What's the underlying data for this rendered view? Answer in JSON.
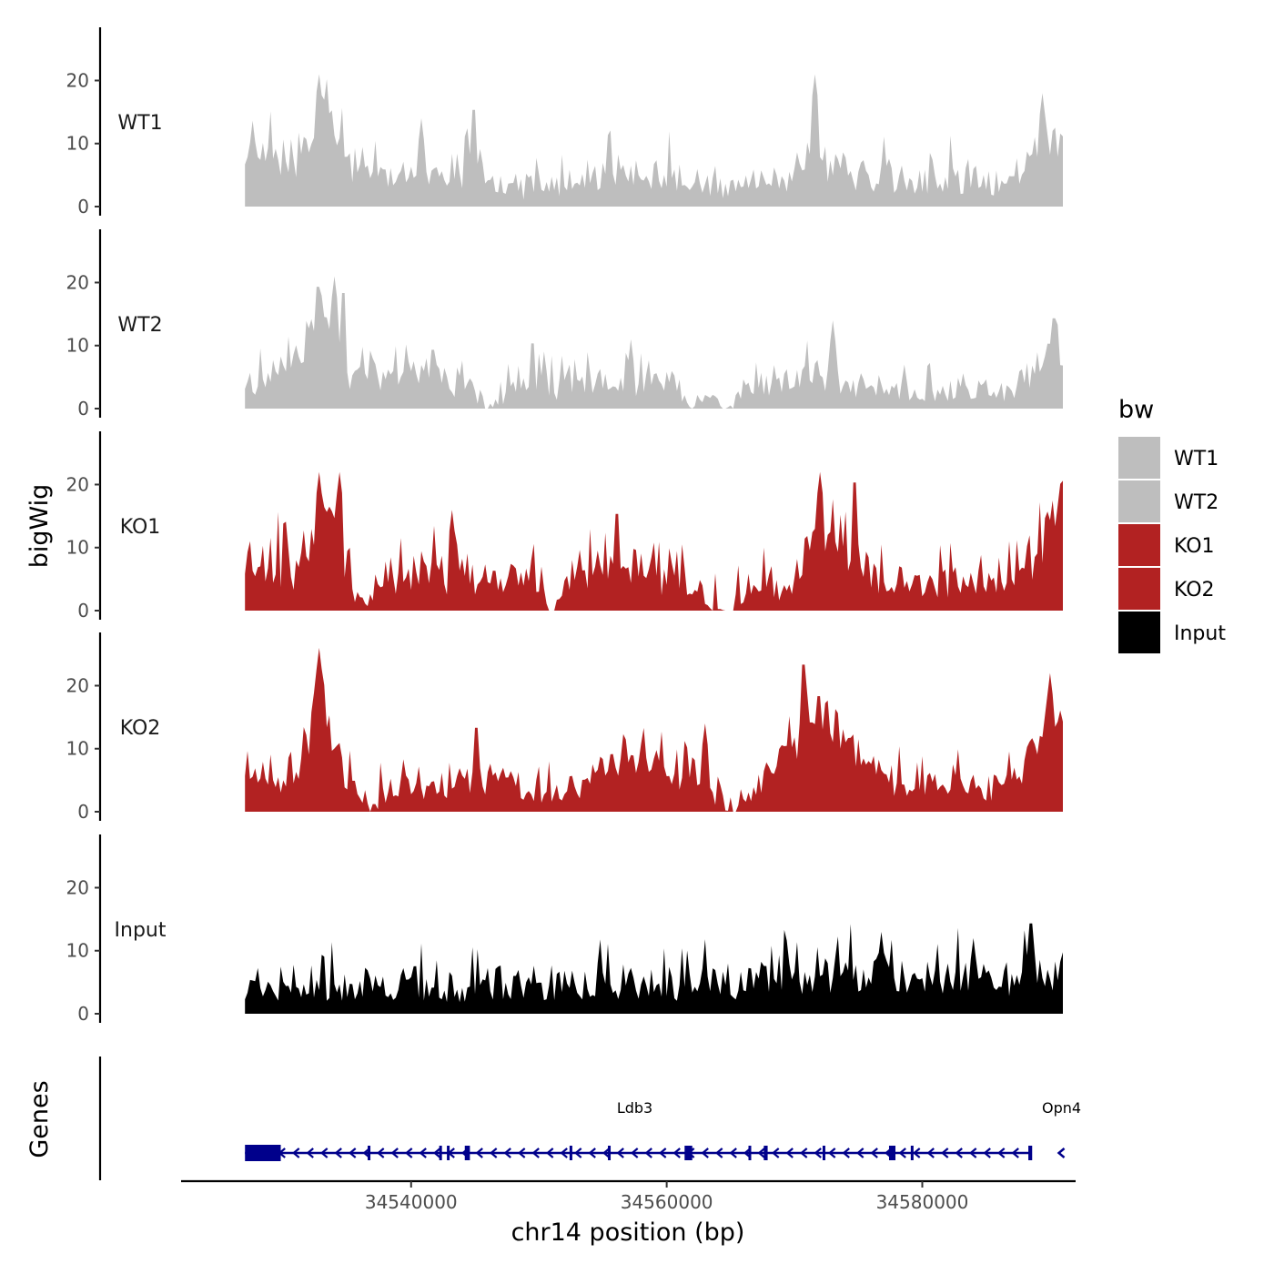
{
  "chart_data": {
    "type": "area",
    "title": "",
    "ylabel": "bigWig",
    "xlabel": "chr14 position (bp)",
    "genes_track_label": "Genes",
    "xlim": [
      34522000,
      34592000
    ],
    "ylim": [
      0,
      27
    ],
    "x_ticks": [
      {
        "value": 34540000,
        "label": "34540000"
      },
      {
        "value": 34560000,
        "label": "34560000"
      },
      {
        "value": 34580000,
        "label": "34580000"
      }
    ],
    "y_ticks": [
      {
        "value": 0,
        "label": "0"
      },
      {
        "value": 10,
        "label": "10"
      },
      {
        "value": 20,
        "label": "20"
      }
    ],
    "x_start": 34527000,
    "x_end": 34591000,
    "step_bp": 200,
    "series": [
      {
        "name": "WT1",
        "color": "#bebebe",
        "anchors": [
          [
            34527000,
            8
          ],
          [
            34529000,
            10
          ],
          [
            34531000,
            9
          ],
          [
            34532500,
            13
          ],
          [
            34533500,
            17
          ],
          [
            34534500,
            11
          ],
          [
            34536500,
            6
          ],
          [
            34538500,
            5
          ],
          [
            34540500,
            5
          ],
          [
            34542500,
            5
          ],
          [
            34544500,
            8
          ],
          [
            34546500,
            4
          ],
          [
            34548500,
            3
          ],
          [
            34550500,
            3
          ],
          [
            34552500,
            5
          ],
          [
            34554500,
            5
          ],
          [
            34556500,
            6
          ],
          [
            34558500,
            5
          ],
          [
            34560500,
            5
          ],
          [
            34562500,
            4
          ],
          [
            34564000,
            2
          ],
          [
            34565500,
            3
          ],
          [
            34567500,
            4
          ],
          [
            34569500,
            6
          ],
          [
            34571500,
            9
          ],
          [
            34573500,
            8
          ],
          [
            34575500,
            5
          ],
          [
            34577500,
            4
          ],
          [
            34579500,
            5
          ],
          [
            34581500,
            5
          ],
          [
            34583500,
            4
          ],
          [
            34585500,
            4
          ],
          [
            34587500,
            6
          ],
          [
            34589500,
            12
          ],
          [
            34591000,
            9
          ]
        ],
        "seed": 11,
        "noise": 5,
        "peaks": [
          [
            34532800,
            21
          ],
          [
            34540800,
            14
          ],
          [
            34544900,
            17
          ],
          [
            34555500,
            13
          ],
          [
            34571600,
            21
          ],
          [
            34589400,
            18
          ]
        ]
      },
      {
        "name": "WT2",
        "color": "#bebebe",
        "anchors": [
          [
            34527000,
            4
          ],
          [
            34529000,
            6
          ],
          [
            34531000,
            7
          ],
          [
            34532500,
            13
          ],
          [
            34533500,
            15
          ],
          [
            34534500,
            8
          ],
          [
            34536500,
            4
          ],
          [
            34538500,
            5
          ],
          [
            34540500,
            6
          ],
          [
            34542500,
            5
          ],
          [
            34544500,
            4
          ],
          [
            34545800,
            0
          ],
          [
            34547500,
            3
          ],
          [
            34549500,
            4
          ],
          [
            34551500,
            3
          ],
          [
            34553500,
            4
          ],
          [
            34555500,
            5
          ],
          [
            34557500,
            4
          ],
          [
            34559500,
            4
          ],
          [
            34561500,
            1.5
          ],
          [
            34563500,
            2
          ],
          [
            34564600,
            0
          ],
          [
            34566500,
            4
          ],
          [
            34568500,
            4
          ],
          [
            34570500,
            5
          ],
          [
            34572500,
            6
          ],
          [
            34574500,
            4
          ],
          [
            34576500,
            4
          ],
          [
            34578500,
            3
          ],
          [
            34580500,
            3
          ],
          [
            34582500,
            3
          ],
          [
            34584500,
            3
          ],
          [
            34586500,
            3
          ],
          [
            34588500,
            5
          ],
          [
            34590500,
            11
          ],
          [
            34591000,
            8
          ]
        ],
        "seed": 23,
        "noise": 4,
        "peaks": [
          [
            34532700,
            21
          ],
          [
            34534000,
            21
          ],
          [
            34534700,
            20
          ],
          [
            34541700,
            11
          ],
          [
            34549500,
            12
          ],
          [
            34557200,
            11
          ],
          [
            34573000,
            14
          ],
          [
            34590300,
            16
          ]
        ]
      },
      {
        "name": "KO1",
        "color": "#b22222",
        "anchors": [
          [
            34527000,
            9
          ],
          [
            34529000,
            9
          ],
          [
            34531000,
            8
          ],
          [
            34532500,
            15
          ],
          [
            34533500,
            15
          ],
          [
            34534500,
            10
          ],
          [
            34535500,
            3
          ],
          [
            34536500,
            1
          ],
          [
            34537500,
            6
          ],
          [
            34539500,
            6
          ],
          [
            34541500,
            7
          ],
          [
            34543500,
            6
          ],
          [
            34545500,
            6
          ],
          [
            34547500,
            5
          ],
          [
            34549500,
            5
          ],
          [
            34550800,
            1
          ],
          [
            34552500,
            6
          ],
          [
            34554500,
            7
          ],
          [
            34556500,
            9
          ],
          [
            34558500,
            6
          ],
          [
            34560500,
            6
          ],
          [
            34562000,
            5
          ],
          [
            34563300,
            1
          ],
          [
            34564500,
            0
          ],
          [
            34565200,
            0
          ],
          [
            34566500,
            4
          ],
          [
            34568000,
            5
          ],
          [
            34569500,
            3
          ],
          [
            34571000,
            10
          ],
          [
            34572500,
            12
          ],
          [
            34574500,
            10
          ],
          [
            34576500,
            5
          ],
          [
            34578500,
            4
          ],
          [
            34580500,
            5
          ],
          [
            34582500,
            5
          ],
          [
            34584500,
            4
          ],
          [
            34586500,
            4
          ],
          [
            34588500,
            6
          ],
          [
            34590000,
            15
          ],
          [
            34591000,
            16
          ]
        ],
        "seed": 37,
        "noise": 5,
        "peaks": [
          [
            34532800,
            22
          ],
          [
            34534400,
            22
          ],
          [
            34543200,
            16
          ],
          [
            34556100,
            17
          ],
          [
            34572000,
            22
          ],
          [
            34574700,
            22
          ],
          [
            34590800,
            20
          ]
        ]
      },
      {
        "name": "KO2",
        "color": "#b22222",
        "anchors": [
          [
            34527000,
            6
          ],
          [
            34529000,
            7
          ],
          [
            34531000,
            5
          ],
          [
            34532000,
            12
          ],
          [
            34532700,
            20
          ],
          [
            34533500,
            14
          ],
          [
            34535000,
            6
          ],
          [
            34536800,
            1
          ],
          [
            34538500,
            4
          ],
          [
            34540500,
            4
          ],
          [
            34542500,
            5
          ],
          [
            34544000,
            5
          ],
          [
            34546500,
            6
          ],
          [
            34548500,
            4
          ],
          [
            34550500,
            3
          ],
          [
            34552500,
            4
          ],
          [
            34554500,
            7
          ],
          [
            34556500,
            8
          ],
          [
            34558500,
            8
          ],
          [
            34560500,
            7
          ],
          [
            34562500,
            7
          ],
          [
            34563700,
            2
          ],
          [
            34564700,
            0
          ],
          [
            34566000,
            2
          ],
          [
            34567500,
            6
          ],
          [
            34569500,
            10
          ],
          [
            34571500,
            16
          ],
          [
            34573500,
            12
          ],
          [
            34575500,
            9
          ],
          [
            34577500,
            6
          ],
          [
            34579500,
            5
          ],
          [
            34581500,
            5
          ],
          [
            34583500,
            4
          ],
          [
            34585500,
            4
          ],
          [
            34587500,
            6
          ],
          [
            34589500,
            14
          ],
          [
            34591000,
            15
          ]
        ],
        "seed": 53,
        "noise": 4,
        "peaks": [
          [
            34532800,
            26
          ],
          [
            34545100,
            15
          ],
          [
            34563000,
            14
          ],
          [
            34570700,
            25
          ],
          [
            34571900,
            20
          ],
          [
            34590000,
            22
          ]
        ]
      },
      {
        "name": "Input",
        "color": "#000000",
        "anchors": [
          [
            34527000,
            4
          ],
          [
            34531000,
            5
          ],
          [
            34535000,
            5
          ],
          [
            34539000,
            5
          ],
          [
            34543000,
            4
          ],
          [
            34547000,
            5
          ],
          [
            34551000,
            5
          ],
          [
            34555000,
            5
          ],
          [
            34559000,
            5
          ],
          [
            34563000,
            5
          ],
          [
            34567000,
            6
          ],
          [
            34571000,
            6
          ],
          [
            34575000,
            6
          ],
          [
            34579000,
            6
          ],
          [
            34583000,
            6
          ],
          [
            34587000,
            7
          ],
          [
            34591000,
            7
          ]
        ],
        "seed": 71,
        "noise": 6,
        "peaks": [
          [
            34576800,
            13
          ],
          [
            34584000,
            12
          ],
          [
            34588500,
            16
          ]
        ]
      }
    ],
    "legend": {
      "title": "bw",
      "position": "right",
      "entries": [
        {
          "label": "WT1",
          "color": "#bebebe"
        },
        {
          "label": "WT2",
          "color": "#bebebe"
        },
        {
          "label": "KO1",
          "color": "#b22222"
        },
        {
          "label": "KO2",
          "color": "#b22222"
        },
        {
          "label": "Input",
          "color": "#000000"
        }
      ]
    },
    "genes": {
      "color": "#00008b",
      "items": [
        {
          "name": "Ldb3",
          "start": 34527000,
          "end": 34588500,
          "strand": "-",
          "exons": [
            [
              34527000,
              34529800
            ],
            [
              34536600,
              34536800
            ],
            [
              34542200,
              34542400
            ],
            [
              34542800,
              34543000
            ],
            [
              34544200,
              34544600
            ],
            [
              34552400,
              34552600
            ],
            [
              34555400,
              34555600
            ],
            [
              34561400,
              34562000
            ],
            [
              34566400,
              34566600
            ],
            [
              34567600,
              34567900
            ],
            [
              34572200,
              34572400
            ],
            [
              34577400,
              34577900
            ],
            [
              34579100,
              34579300
            ],
            [
              34588300,
              34588600
            ]
          ],
          "label_position": 34557500
        },
        {
          "name": "Opn4",
          "start": 34590600,
          "end": 34591200,
          "strand": "-",
          "exons": [],
          "label_position": 34590900
        }
      ]
    }
  }
}
